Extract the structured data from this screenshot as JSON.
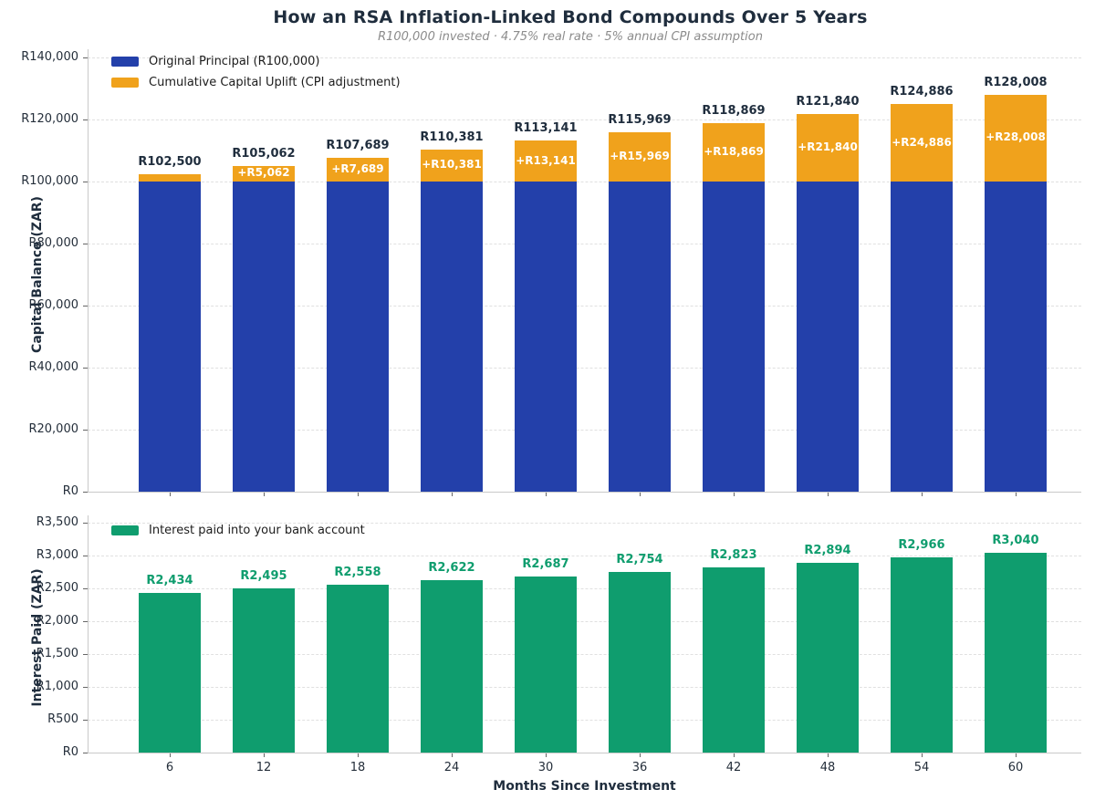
{
  "figure": {
    "title": "How an RSA Inflation-Linked Bond Compounds Over 5 Years",
    "subtitle": "R100,000 invested · 4.75% real rate · 5% annual CPI assumption"
  },
  "colors": {
    "principal_blue": "#2340aa",
    "uplift_orange": "#f0a21c",
    "interest_green": "#0f9d6e",
    "heading_navy": "#1f2d3d",
    "subtitle_gray": "#8c8c8c"
  },
  "chart_data": [
    {
      "type": "bar",
      "stacked": true,
      "categories": [
        "6",
        "12",
        "18",
        "24",
        "30",
        "36",
        "42",
        "48",
        "54",
        "60"
      ],
      "series": [
        {
          "name": "Original Principal (R100,000)",
          "color": "#2340aa",
          "values": [
            100000,
            100000,
            100000,
            100000,
            100000,
            100000,
            100000,
            100000,
            100000,
            100000
          ]
        },
        {
          "name": "Cumulative Capital Uplift (CPI adjustment)",
          "color": "#f0a21c",
          "values": [
            2500,
            5062,
            7689,
            10381,
            13141,
            15969,
            18869,
            21840,
            24886,
            28008
          ]
        }
      ],
      "totals": [
        102500,
        105062,
        107689,
        110381,
        113141,
        115969,
        118869,
        121840,
        124886,
        128008
      ],
      "total_labels": [
        "R102,500",
        "R105,062",
        "R107,689",
        "R110,381",
        "R113,141",
        "R115,969",
        "R118,869",
        "R121,840",
        "R124,886",
        "R128,008"
      ],
      "segment_labels": [
        "",
        "+R5,062",
        "+R7,689",
        "+R10,381",
        "+R13,141",
        "+R15,969",
        "+R18,869",
        "+R21,840",
        "+R24,886",
        "+R28,008"
      ],
      "ylabel": "Capital Balance (ZAR)",
      "xlabel": "",
      "ylim": [
        0,
        140000
      ],
      "yticks": {
        "values": [
          0,
          20000,
          40000,
          60000,
          80000,
          100000,
          120000,
          140000
        ],
        "labels": [
          "R0",
          "R20,000",
          "R40,000",
          "R60,000",
          "R80,000",
          "R100,000",
          "R120,000",
          "R140,000"
        ]
      },
      "grid": "horizontal-dashed",
      "legend_position": "upper-left",
      "label_color": "#1f2d3d",
      "show_x_labels": false
    },
    {
      "type": "bar",
      "stacked": false,
      "categories": [
        "6",
        "12",
        "18",
        "24",
        "30",
        "36",
        "42",
        "48",
        "54",
        "60"
      ],
      "series": [
        {
          "name": "Interest paid into your bank account",
          "color": "#0f9d6e",
          "values": [
            2434,
            2495,
            2558,
            2622,
            2687,
            2754,
            2823,
            2894,
            2966,
            3040
          ]
        }
      ],
      "bar_labels": [
        "R2,434",
        "R2,495",
        "R2,558",
        "R2,622",
        "R2,687",
        "R2,754",
        "R2,823",
        "R2,894",
        "R2,966",
        "R3,040"
      ],
      "ylabel": "Interest Paid (ZAR)",
      "xlabel": "Months Since Investment",
      "ylim": [
        0,
        3500
      ],
      "yticks": {
        "values": [
          0,
          500,
          1000,
          1500,
          2000,
          2500,
          3000,
          3500
        ],
        "labels": [
          "R0",
          "R500",
          "R1,000",
          "R1,500",
          "R2,000",
          "R2,500",
          "R3,000",
          "R3,500"
        ]
      },
      "grid": "horizontal-dashed",
      "legend_position": "upper-left",
      "label_color": "#0f9d6e",
      "show_x_labels": true
    }
  ]
}
